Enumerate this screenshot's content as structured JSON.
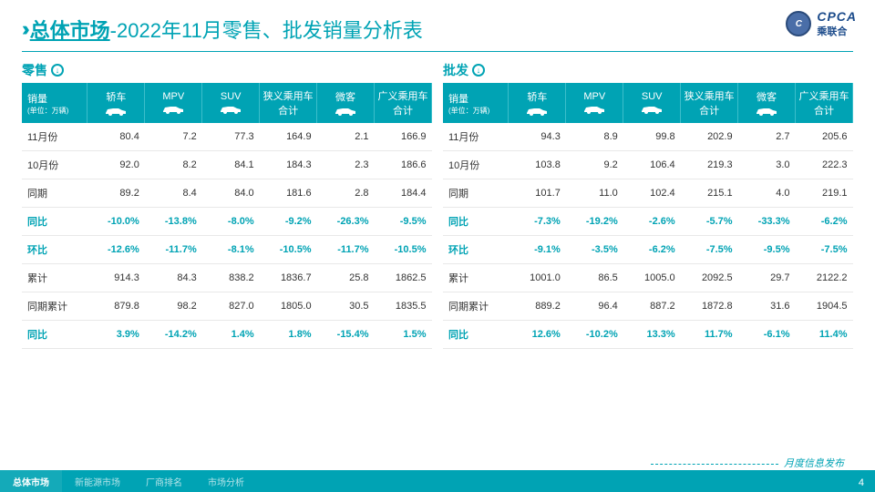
{
  "colors": {
    "brand": "#00a3b4",
    "logo": "#1a4a8a"
  },
  "header": {
    "main": "总体市场",
    "sub": "-2022年11月零售、批发销量分析表"
  },
  "logo": {
    "badge": "C",
    "en": "CPCA",
    "cn": "乘联合"
  },
  "footer": {
    "tabs": [
      "总体市场",
      "新能源市场",
      "厂商排名",
      "市场分析"
    ],
    "active": 0,
    "right": "月度信息发布",
    "page": "4"
  },
  "columns": [
    {
      "label": "销量",
      "unit": "(单位：万辆)",
      "icon": null
    },
    {
      "label": "轿车",
      "icon": "sedan"
    },
    {
      "label": "MPV",
      "icon": "mpv"
    },
    {
      "label": "SUV",
      "icon": "suv"
    },
    {
      "label": "狭义乘用车合计",
      "icon": null
    },
    {
      "label": "微客",
      "icon": "van"
    },
    {
      "label": "广义乘用车合计",
      "icon": null
    }
  ],
  "retail": {
    "title": "零售",
    "rows": [
      {
        "label": "11月份",
        "cells": [
          "80.4",
          "7.2",
          "77.3",
          "164.9",
          "2.1",
          "166.9"
        ],
        "teal": false
      },
      {
        "label": "10月份",
        "cells": [
          "92.0",
          "8.2",
          "84.1",
          "184.3",
          "2.3",
          "186.6"
        ],
        "teal": false
      },
      {
        "label": "同期",
        "cells": [
          "89.2",
          "8.4",
          "84.0",
          "181.6",
          "2.8",
          "184.4"
        ],
        "teal": false
      },
      {
        "label": "同比",
        "cells": [
          "-10.0%",
          "-13.8%",
          "-8.0%",
          "-9.2%",
          "-26.3%",
          "-9.5%"
        ],
        "teal": true
      },
      {
        "label": "环比",
        "cells": [
          "-12.6%",
          "-11.7%",
          "-8.1%",
          "-10.5%",
          "-11.7%",
          "-10.5%"
        ],
        "teal": true
      },
      {
        "label": "累计",
        "cells": [
          "914.3",
          "84.3",
          "838.2",
          "1836.7",
          "25.8",
          "1862.5"
        ],
        "teal": false
      },
      {
        "label": "同期累计",
        "cells": [
          "879.8",
          "98.2",
          "827.0",
          "1805.0",
          "30.5",
          "1835.5"
        ],
        "teal": false
      },
      {
        "label": "同比",
        "cells": [
          "3.9%",
          "-14.2%",
          "1.4%",
          "1.8%",
          "-15.4%",
          "1.5%"
        ],
        "teal": true
      }
    ]
  },
  "wholesale": {
    "title": "批发",
    "rows": [
      {
        "label": "11月份",
        "cells": [
          "94.3",
          "8.9",
          "99.8",
          "202.9",
          "2.7",
          "205.6"
        ],
        "teal": false
      },
      {
        "label": "10月份",
        "cells": [
          "103.8",
          "9.2",
          "106.4",
          "219.3",
          "3.0",
          "222.3"
        ],
        "teal": false
      },
      {
        "label": "同期",
        "cells": [
          "101.7",
          "11.0",
          "102.4",
          "215.1",
          "4.0",
          "219.1"
        ],
        "teal": false
      },
      {
        "label": "同比",
        "cells": [
          "-7.3%",
          "-19.2%",
          "-2.6%",
          "-5.7%",
          "-33.3%",
          "-6.2%"
        ],
        "teal": true
      },
      {
        "label": "环比",
        "cells": [
          "-9.1%",
          "-3.5%",
          "-6.2%",
          "-7.5%",
          "-9.5%",
          "-7.5%"
        ],
        "teal": true
      },
      {
        "label": "累计",
        "cells": [
          "1001.0",
          "86.5",
          "1005.0",
          "2092.5",
          "29.7",
          "2122.2"
        ],
        "teal": false
      },
      {
        "label": "同期累计",
        "cells": [
          "889.2",
          "96.4",
          "887.2",
          "1872.8",
          "31.6",
          "1904.5"
        ],
        "teal": false
      },
      {
        "label": "同比",
        "cells": [
          "12.6%",
          "-10.2%",
          "13.3%",
          "11.7%",
          "-6.1%",
          "11.4%"
        ],
        "teal": true
      }
    ]
  }
}
